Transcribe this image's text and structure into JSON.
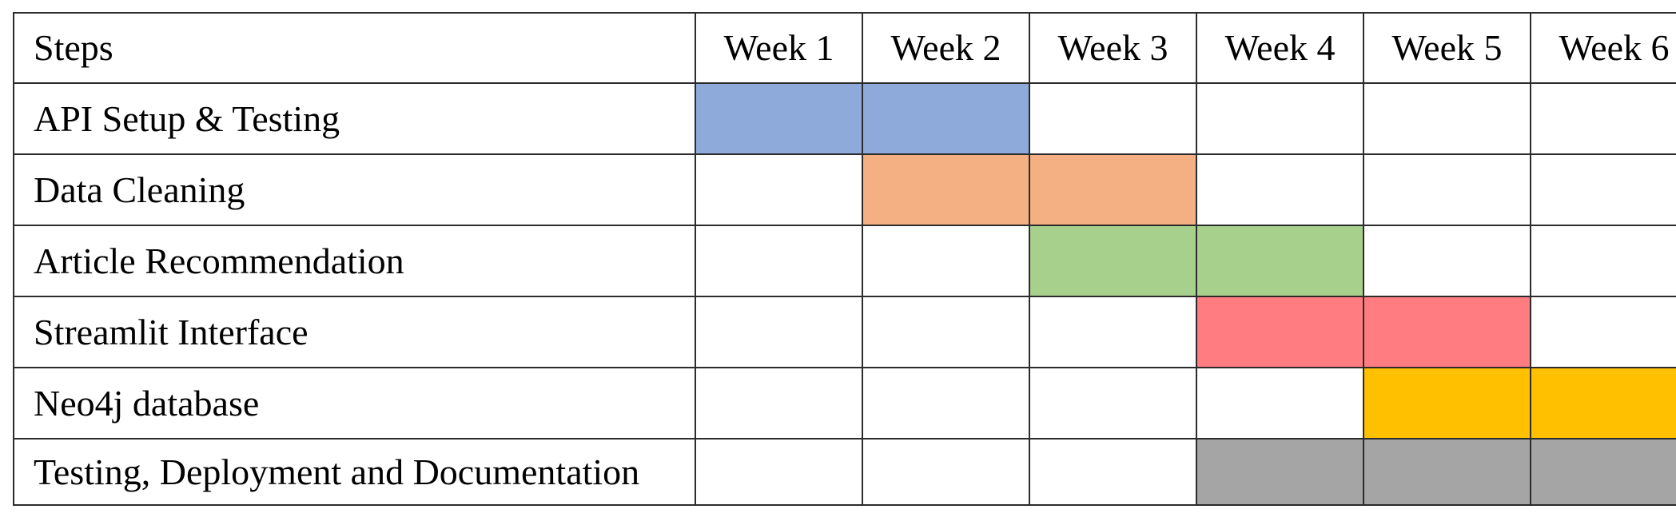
{
  "chart_data": {
    "type": "table",
    "header": {
      "step_label": "Steps",
      "weeks": [
        "Week 1",
        "Week 2",
        "Week 3",
        "Week 4",
        "Week 5",
        "Week 6"
      ]
    },
    "tasks": [
      {
        "name": "API Setup & Testing",
        "weeks_active": [
          1,
          2
        ],
        "color": "#8EAADB"
      },
      {
        "name": "Data Cleaning",
        "weeks_active": [
          2,
          3
        ],
        "color": "#F4B083"
      },
      {
        "name": "Article Recommendation",
        "weeks_active": [
          3,
          4
        ],
        "color": "#A8D08D"
      },
      {
        "name": "Streamlit Interface",
        "weeks_active": [
          4,
          5
        ],
        "color": "#FF7C80"
      },
      {
        "name": "Neo4j database",
        "weeks_active": [
          5,
          6
        ],
        "color": "#FFC000"
      },
      {
        "name": "Testing, Deployment and Documentation",
        "weeks_active": [
          4,
          5,
          6
        ],
        "color": "#A5A5A5"
      }
    ]
  }
}
